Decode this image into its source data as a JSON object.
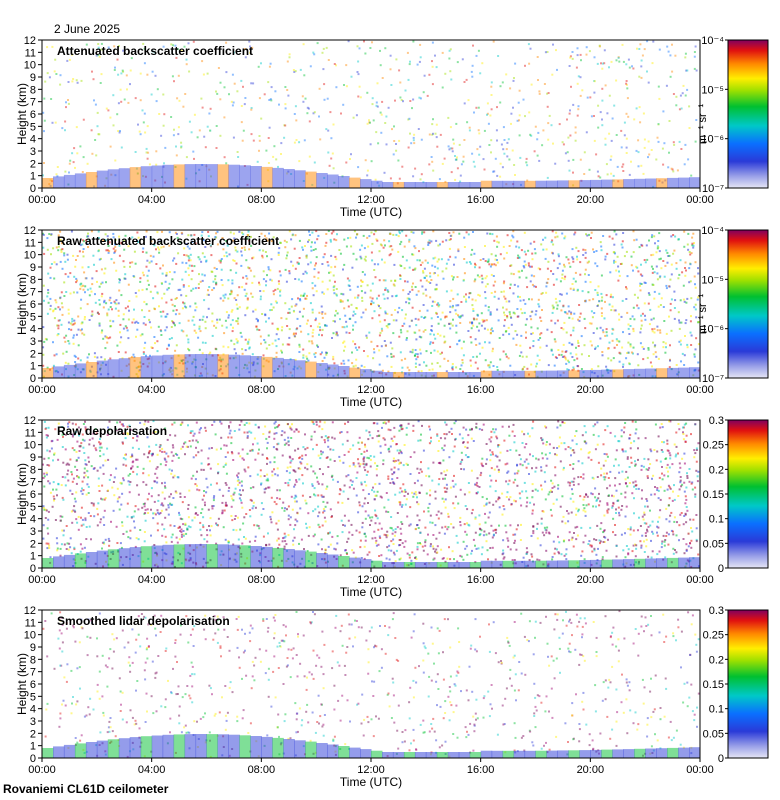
{
  "figure": {
    "date": "2 June 2025",
    "footer": "Rovaniemi CL61D ceilometer"
  },
  "chart_data": [
    {
      "type": "heatmap",
      "title": "Attenuated backscatter coefficient",
      "xlabel": "Time (UTC)",
      "ylabel": "Height (km)",
      "xticks": [
        "00:00",
        "04:00",
        "08:00",
        "12:00",
        "16:00",
        "20:00",
        "00:00"
      ],
      "yticks": [
        0,
        1,
        2,
        3,
        4,
        5,
        6,
        7,
        8,
        9,
        10,
        11,
        12
      ],
      "ylim": [
        0,
        12
      ],
      "colorbar": {
        "scale": "log",
        "range": [
          1e-07,
          0.0001
        ],
        "units": "m⁻¹ sr⁻¹",
        "tick_labels": [
          "10⁻⁷",
          "10⁻⁶",
          "10⁻⁵",
          "10⁻⁴"
        ]
      }
    },
    {
      "type": "heatmap",
      "title": "Raw attenuated backscatter coefficient",
      "xlabel": "Time (UTC)",
      "ylabel": "Height (km)",
      "xticks": [
        "00:00",
        "04:00",
        "08:00",
        "12:00",
        "16:00",
        "20:00",
        "00:00"
      ],
      "yticks": [
        0,
        1,
        2,
        3,
        4,
        5,
        6,
        7,
        8,
        9,
        10,
        11,
        12
      ],
      "ylim": [
        0,
        12
      ],
      "colorbar": {
        "scale": "log",
        "range": [
          1e-07,
          0.0001
        ],
        "units": "m⁻¹ sr⁻¹",
        "tick_labels": [
          "10⁻⁷",
          "10⁻⁶",
          "10⁻⁵",
          "10⁻⁴"
        ]
      }
    },
    {
      "type": "heatmap",
      "title": "Raw depolarisation",
      "xlabel": "Time (UTC)",
      "ylabel": "Height (km)",
      "xticks": [
        "00:00",
        "04:00",
        "08:00",
        "12:00",
        "16:00",
        "20:00",
        "00:00"
      ],
      "yticks": [
        0,
        1,
        2,
        3,
        4,
        5,
        6,
        7,
        8,
        9,
        10,
        11,
        12
      ],
      "ylim": [
        0,
        12
      ],
      "colorbar": {
        "scale": "linear",
        "range": [
          0,
          0.3
        ],
        "units": "",
        "tick_labels": [
          "0",
          "0.05",
          "0.1",
          "0.15",
          "0.2",
          "0.25",
          "0.3"
        ]
      }
    },
    {
      "type": "heatmap",
      "title": "Smoothed lidar depolarisation",
      "xlabel": "Time (UTC)",
      "ylabel": "Height (km)",
      "xticks": [
        "00:00",
        "04:00",
        "08:00",
        "12:00",
        "16:00",
        "20:00",
        "00:00"
      ],
      "yticks": [
        0,
        1,
        2,
        3,
        4,
        5,
        6,
        7,
        8,
        9,
        10,
        11,
        12
      ],
      "ylim": [
        0,
        12
      ],
      "colorbar": {
        "scale": "linear",
        "range": [
          0,
          0.3
        ],
        "units": "",
        "tick_labels": [
          "0",
          "0.05",
          "0.1",
          "0.15",
          "0.2",
          "0.25",
          "0.3"
        ]
      }
    }
  ]
}
